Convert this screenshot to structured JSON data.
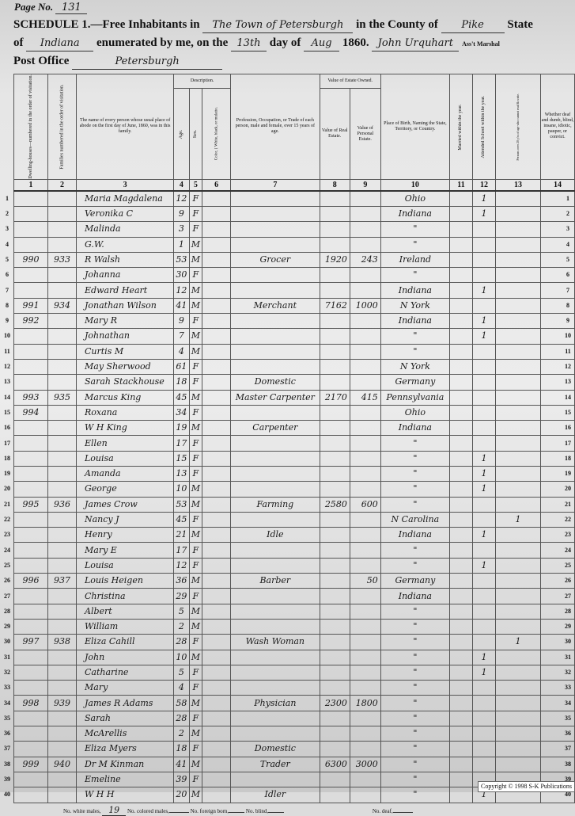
{
  "header": {
    "page_label": "Page No.",
    "page_no": "131",
    "schedule": "SCHEDULE 1.—Free Inhabitants in",
    "town": "The Town of Petersburgh",
    "county_label": "in the County of",
    "county": "Pike",
    "state_label": "State",
    "of_label": "of",
    "state": "Indiana",
    "enumerated": "enumerated by me, on the",
    "day": "13th",
    "day_of": "day of",
    "month": "Aug",
    "year": "1860.",
    "marshal": "John Urquhart",
    "marshal_title": "Ass't Marshal",
    "post_office_label": "Post Office",
    "post_office": "Petersburgh"
  },
  "columns": {
    "c1": "Dwelling-houses—numbered in the order of visitation.",
    "c2": "Families numbered in the order of visitation.",
    "c3": "The name of every person whose usual place of abode on the first day of June, 1860, was in this family.",
    "description": "Description.",
    "c4": "Age.",
    "c5": "Sex.",
    "c6": "Color, { White, black, or mulatto.",
    "c7": "Profession, Occupation, or Trade of each person, male and female, over 15 years of age.",
    "estate": "Value of Estate Owned.",
    "c8": "Value of Real Estate.",
    "c9": "Value of Personal Estate.",
    "c10": "Place of Birth, Naming the State, Territory, or Country.",
    "c11": "Married within the year.",
    "c12": "Attended School within the year.",
    "c13": "Persons over 20 y'rs of age who cannot read & write.",
    "c14": "Whether deaf and dumb, blind, insane, idiotic, pauper, or convict.",
    "numbers": [
      "1",
      "2",
      "3",
      "4",
      "5",
      "6",
      "7",
      "8",
      "9",
      "10",
      "11",
      "12",
      "13",
      "14"
    ]
  },
  "rows": [
    [
      "",
      "",
      "Maria Magdalena",
      "12",
      "F",
      "",
      "",
      "",
      "",
      "Ohio",
      "",
      "1",
      "",
      ""
    ],
    [
      "",
      "",
      "Veronika C",
      "9",
      "F",
      "",
      "",
      "",
      "",
      "Indiana",
      "",
      "1",
      "",
      ""
    ],
    [
      "",
      "",
      "Malinda",
      "3",
      "F",
      "",
      "",
      "",
      "",
      "\"",
      "",
      "",
      "",
      ""
    ],
    [
      "",
      "",
      "G.W.",
      "1",
      "M",
      "",
      "",
      "",
      "",
      "\"",
      "",
      "",
      "",
      ""
    ],
    [
      "990",
      "933",
      "R Walsh",
      "53",
      "M",
      "",
      "Grocer",
      "1920",
      "243",
      "Ireland",
      "",
      "",
      "",
      ""
    ],
    [
      "",
      "",
      "Johanna",
      "30",
      "F",
      "",
      "",
      "",
      "",
      "\"",
      "",
      "",
      "",
      ""
    ],
    [
      "",
      "",
      "Edward Heart",
      "12",
      "M",
      "",
      "",
      "",
      "",
      "Indiana",
      "",
      "1",
      "",
      ""
    ],
    [
      "991",
      "934",
      "Jonathan Wilson",
      "41",
      "M",
      "",
      "Merchant",
      "7162",
      "1000",
      "N York",
      "",
      "",
      "",
      ""
    ],
    [
      "992",
      "",
      "Mary R",
      "9",
      "F",
      "",
      "",
      "",
      "",
      "Indiana",
      "",
      "1",
      "",
      ""
    ],
    [
      "",
      "",
      "Johnathan",
      "7",
      "M",
      "",
      "",
      "",
      "",
      "\"",
      "",
      "1",
      "",
      ""
    ],
    [
      "",
      "",
      "Curtis M",
      "4",
      "M",
      "",
      "",
      "",
      "",
      "\"",
      "",
      "",
      "",
      ""
    ],
    [
      "",
      "",
      "May Sherwood",
      "61",
      "F",
      "",
      "",
      "",
      "",
      "N York",
      "",
      "",
      "",
      ""
    ],
    [
      "",
      "",
      "Sarah Stackhouse",
      "18",
      "F",
      "",
      "Domestic",
      "",
      "",
      "Germany",
      "",
      "",
      "",
      ""
    ],
    [
      "993",
      "935",
      "Marcus King",
      "45",
      "M",
      "",
      "Master Carpenter",
      "2170",
      "415",
      "Pennsylvania",
      "",
      "",
      "",
      ""
    ],
    [
      "994",
      "",
      "Roxana",
      "34",
      "F",
      "",
      "",
      "",
      "",
      "Ohio",
      "",
      "",
      "",
      ""
    ],
    [
      "",
      "",
      "W H King",
      "19",
      "M",
      "",
      "Carpenter",
      "",
      "",
      "Indiana",
      "",
      "",
      "",
      ""
    ],
    [
      "",
      "",
      "Ellen",
      "17",
      "F",
      "",
      "",
      "",
      "",
      "\"",
      "",
      "",
      "",
      ""
    ],
    [
      "",
      "",
      "Louisa",
      "15",
      "F",
      "",
      "",
      "",
      "",
      "\"",
      "",
      "1",
      "",
      ""
    ],
    [
      "",
      "",
      "Amanda",
      "13",
      "F",
      "",
      "",
      "",
      "",
      "\"",
      "",
      "1",
      "",
      ""
    ],
    [
      "",
      "",
      "George",
      "10",
      "M",
      "",
      "",
      "",
      "",
      "\"",
      "",
      "1",
      "",
      ""
    ],
    [
      "995",
      "936",
      "James Crow",
      "53",
      "M",
      "",
      "Farming",
      "2580",
      "600",
      "\"",
      "",
      "",
      "",
      ""
    ],
    [
      "",
      "",
      "Nancy J",
      "45",
      "F",
      "",
      "",
      "",
      "",
      "N Carolina",
      "",
      "",
      "1",
      ""
    ],
    [
      "",
      "",
      "Henry",
      "21",
      "M",
      "",
      "Idle",
      "",
      "",
      "Indiana",
      "",
      "1",
      "",
      ""
    ],
    [
      "",
      "",
      "Mary E",
      "17",
      "F",
      "",
      "",
      "",
      "",
      "\"",
      "",
      "",
      "",
      ""
    ],
    [
      "",
      "",
      "Louisa",
      "12",
      "F",
      "",
      "",
      "",
      "",
      "\"",
      "",
      "1",
      "",
      ""
    ],
    [
      "996",
      "937",
      "Louis Heigen",
      "36",
      "M",
      "",
      "Barber",
      "",
      "50",
      "Germany",
      "",
      "",
      "",
      ""
    ],
    [
      "",
      "",
      "Christina",
      "29",
      "F",
      "",
      "",
      "",
      "",
      "Indiana",
      "",
      "",
      "",
      ""
    ],
    [
      "",
      "",
      "Albert",
      "5",
      "M",
      "",
      "",
      "",
      "",
      "\"",
      "",
      "",
      "",
      ""
    ],
    [
      "",
      "",
      "William",
      "2",
      "M",
      "",
      "",
      "",
      "",
      "\"",
      "",
      "",
      "",
      ""
    ],
    [
      "997",
      "938",
      "Eliza Cahill",
      "28",
      "F",
      "",
      "Wash Woman",
      "",
      "",
      "\"",
      "",
      "",
      "1",
      ""
    ],
    [
      "",
      "",
      "John",
      "10",
      "M",
      "",
      "",
      "",
      "",
      "\"",
      "",
      "1",
      "",
      ""
    ],
    [
      "",
      "",
      "Catharine",
      "5",
      "F",
      "",
      "",
      "",
      "",
      "\"",
      "",
      "1",
      "",
      ""
    ],
    [
      "",
      "",
      "Mary",
      "4",
      "F",
      "",
      "",
      "",
      "",
      "\"",
      "",
      "",
      "",
      ""
    ],
    [
      "998",
      "939",
      "James R Adams",
      "58",
      "M",
      "",
      "Physician",
      "2300",
      "1800",
      "\"",
      "",
      "",
      "",
      ""
    ],
    [
      "",
      "",
      "Sarah",
      "28",
      "F",
      "",
      "",
      "",
      "",
      "\"",
      "",
      "",
      "",
      ""
    ],
    [
      "",
      "",
      "McArellis",
      "2",
      "M",
      "",
      "",
      "",
      "",
      "\"",
      "",
      "",
      "",
      ""
    ],
    [
      "",
      "",
      "Eliza Myers",
      "18",
      "F",
      "",
      "Domestic",
      "",
      "",
      "\"",
      "",
      "",
      "",
      ""
    ],
    [
      "999",
      "940",
      "Dr M Kinman",
      "41",
      "M",
      "",
      "Trader",
      "6300",
      "3000",
      "\"",
      "",
      "",
      "",
      ""
    ],
    [
      "",
      "",
      "Emeline",
      "39",
      "F",
      "",
      "",
      "",
      "",
      "\"",
      "",
      "",
      "",
      ""
    ],
    [
      "",
      "",
      "W H H",
      "20",
      "M",
      "",
      "Idler",
      "",
      "",
      "\"",
      "",
      "1",
      "",
      ""
    ]
  ],
  "footer": {
    "white_males_label": "No. white males,",
    "white_males": "19",
    "colored_males_label": "No. colored males,",
    "foreign_born_label": "No. foreign born,",
    "blind_label": "No. blind,",
    "deaf_label": "No. deaf,",
    "copyright": "Copyright © 1998 S-K Publications"
  }
}
